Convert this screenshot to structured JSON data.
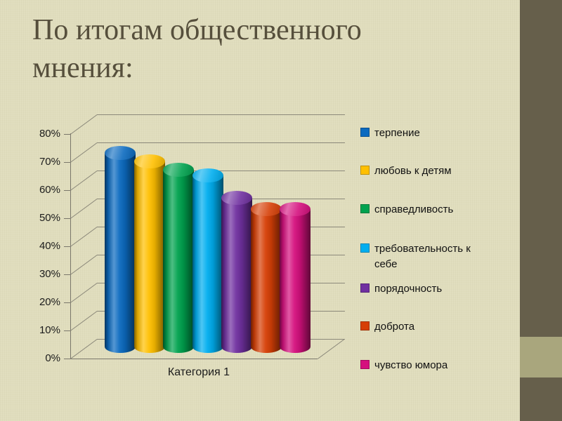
{
  "title": "По итогам общественного мнения:",
  "chart_data": {
    "type": "bar",
    "style": "3d-cylinder",
    "title": "",
    "xlabel": "",
    "ylabel": "",
    "categories": [
      "Категория 1"
    ],
    "series": [
      {
        "name": "терпение",
        "value": 69,
        "color": "#0B6ABF"
      },
      {
        "name": "любовь к детям",
        "value": 66,
        "color": "#FFC000"
      },
      {
        "name": "справедливость",
        "value": 63,
        "color": "#00A24E"
      },
      {
        "name": "требовательность к себе",
        "value": 61,
        "color": "#00AEEF"
      },
      {
        "name": "порядочность",
        "value": 53,
        "color": "#7030A0"
      },
      {
        "name": "доброта",
        "value": 49,
        "color": "#D63F06"
      },
      {
        "name": "чувство юмора",
        "value": 49,
        "color": "#D5107E"
      }
    ],
    "y_ticks": [
      "0%",
      "10%",
      "20%",
      "30%",
      "40%",
      "50%",
      "60%",
      "70%",
      "80%"
    ],
    "ylim": [
      0,
      80
    ],
    "grid": true,
    "legend_position": "right"
  },
  "colors": {
    "slide_bg": "#E0DDBD",
    "title_text": "#564F3C",
    "grid_line": "#8B887A",
    "axis_line": "#7A776B",
    "tick_label_text": "#1B1B1B",
    "legend_text": "#111111",
    "panel_dark": "#665F4B",
    "scroll_thumb": "#A9A67D"
  }
}
